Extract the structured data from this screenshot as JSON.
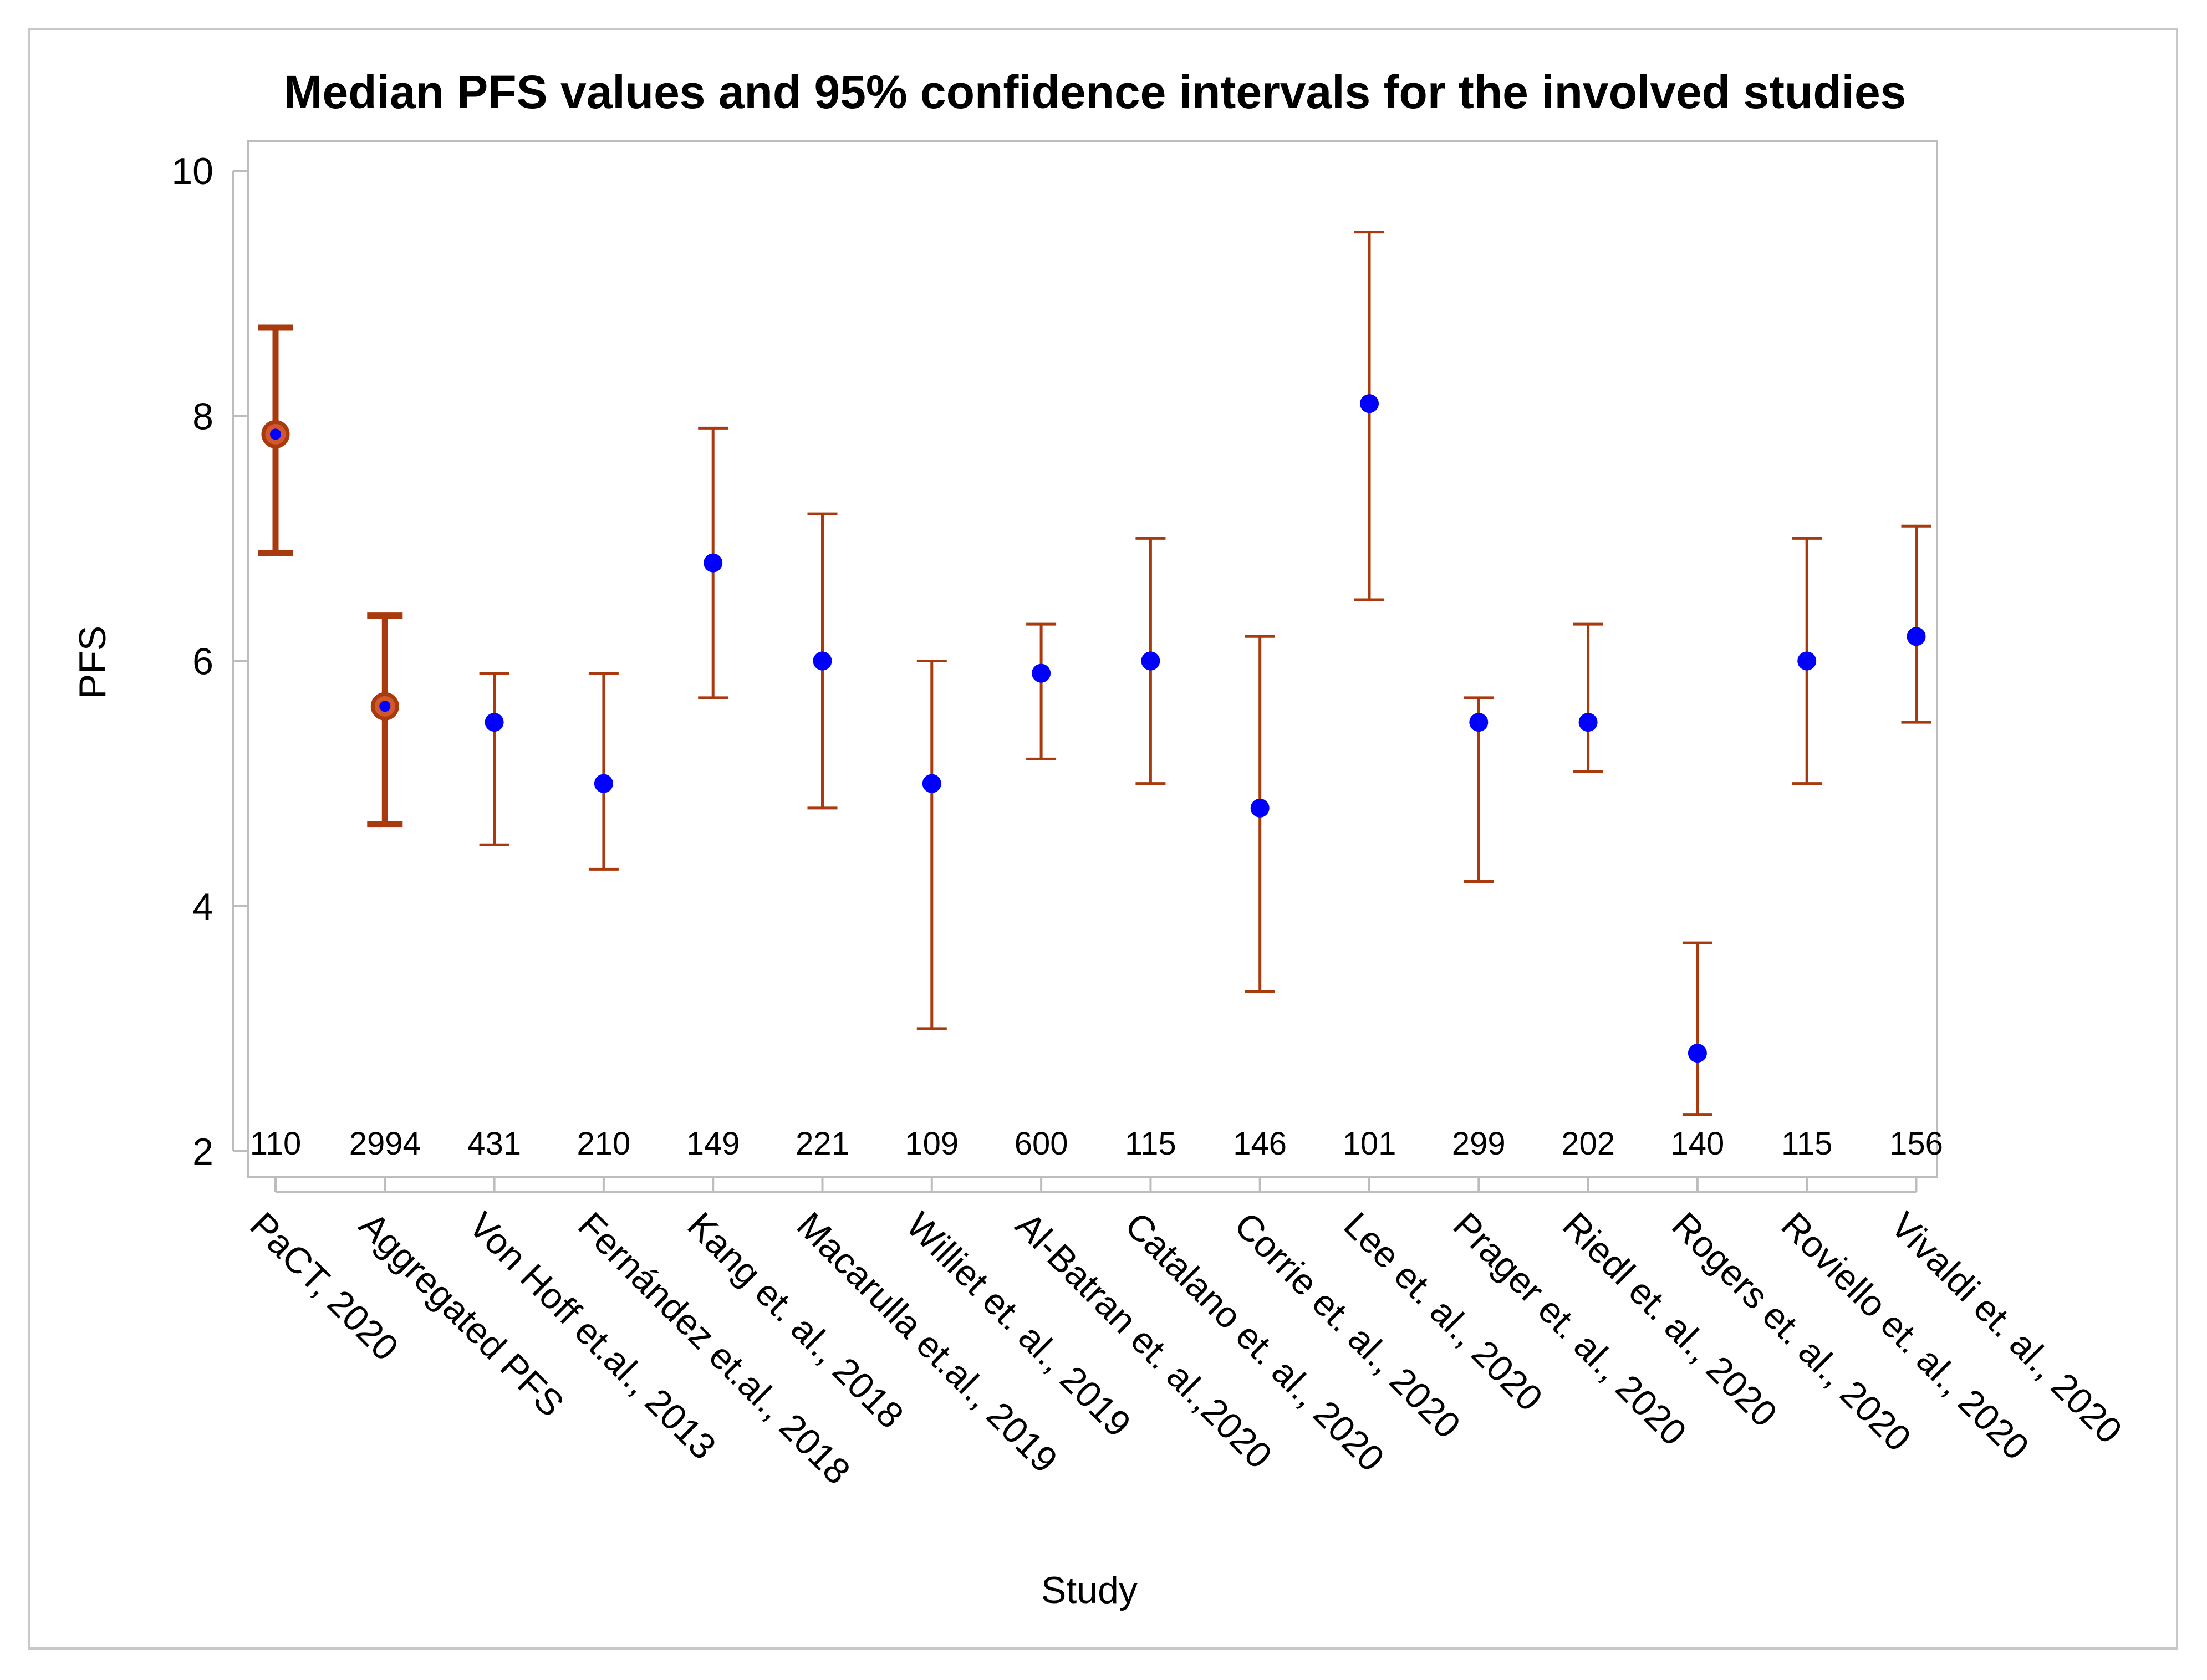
{
  "chart_data": {
    "type": "errorbar",
    "title": "Median PFS values and 95% confidence intervals for the involved studies",
    "xlabel": "Study",
    "ylabel": "PFS",
    "ylim": [
      2,
      10
    ],
    "yticks": [
      "2",
      "4",
      "6",
      "8",
      "10"
    ],
    "colors": {
      "interval": "#a83a0e",
      "point": "#0000ff",
      "frame": "#bdbdbd",
      "border": "#c8c8c8"
    },
    "studies": [
      {
        "name": "PaCT, 2020",
        "n": "110",
        "median": 7.85,
        "lower": 6.88,
        "upper": 8.72,
        "highlight": true
      },
      {
        "name": "Aggregated PFS",
        "n": "2994",
        "median": 5.63,
        "lower": 4.67,
        "upper": 6.37,
        "highlight": true
      },
      {
        "name": "Von Hoff et.al., 2013",
        "n": "431",
        "median": 5.5,
        "lower": 4.5,
        "upper": 5.9,
        "highlight": false
      },
      {
        "name": "Fernández et.al., 2018",
        "n": "210",
        "median": 5.0,
        "lower": 4.3,
        "upper": 5.9,
        "highlight": false
      },
      {
        "name": "Kang et. al., 2018",
        "n": "149",
        "median": 6.8,
        "lower": 5.7,
        "upper": 7.9,
        "highlight": false
      },
      {
        "name": "Macarulla et.al., 2019",
        "n": "221",
        "median": 6.0,
        "lower": 4.8,
        "upper": 7.2,
        "highlight": false
      },
      {
        "name": "Williet et. al., 2019",
        "n": "109",
        "median": 5.0,
        "lower": 3.0,
        "upper": 6.0,
        "highlight": false
      },
      {
        "name": "Al-Batran et. al.,2020",
        "n": "600",
        "median": 5.9,
        "lower": 5.2,
        "upper": 6.3,
        "highlight": false
      },
      {
        "name": "Catalano et. al., 2020",
        "n": "115",
        "median": 6.0,
        "lower": 5.0,
        "upper": 7.0,
        "highlight": false
      },
      {
        "name": "Corrie et. al., 2020",
        "n": "146",
        "median": 4.8,
        "lower": 3.3,
        "upper": 6.2,
        "highlight": false
      },
      {
        "name": "Lee et. al., 2020",
        "n": "101",
        "median": 8.1,
        "lower": 6.5,
        "upper": 9.5,
        "highlight": false
      },
      {
        "name": "Prager et. al., 2020",
        "n": "299",
        "median": 5.5,
        "lower": 4.2,
        "upper": 5.7,
        "highlight": false
      },
      {
        "name": "Riedl et. al., 2020",
        "n": "202",
        "median": 5.5,
        "lower": 5.1,
        "upper": 6.3,
        "highlight": false
      },
      {
        "name": "Rogers et. al., 2020",
        "n": "140",
        "median": 2.8,
        "lower": 2.3,
        "upper": 3.7,
        "highlight": false
      },
      {
        "name": "Roviello et. al., 2020",
        "n": "115",
        "median": 6.0,
        "lower": 5.0,
        "upper": 7.0,
        "highlight": false
      },
      {
        "name": "Vivaldi et. al., 2020",
        "n": "156",
        "median": 6.2,
        "lower": 5.5,
        "upper": 7.1,
        "highlight": false
      }
    ]
  }
}
